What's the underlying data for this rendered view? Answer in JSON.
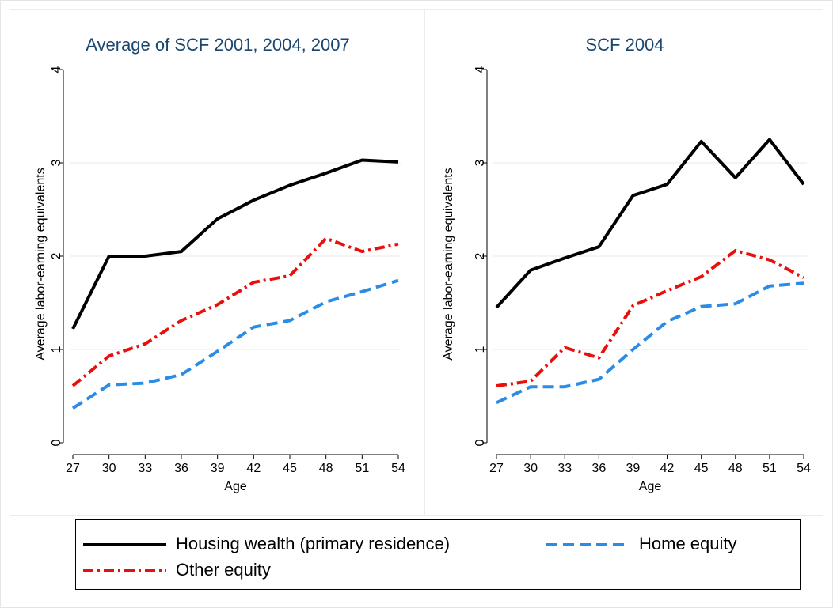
{
  "chart_data": [
    {
      "type": "line",
      "title": "Average of SCF 2001, 2004, 2007",
      "xlabel": "Age",
      "ylabel": "Average labor-earning equivalents",
      "x": [
        27,
        30,
        33,
        36,
        39,
        42,
        45,
        48,
        51,
        54
      ],
      "xlim": [
        27,
        54
      ],
      "xticks": [
        27,
        30,
        33,
        36,
        39,
        42,
        45,
        48,
        51,
        54
      ],
      "ylim": [
        0,
        4
      ],
      "yticks": [
        0,
        1,
        2,
        3,
        4
      ],
      "grid": true,
      "legend": "bottom",
      "series": [
        {
          "name": "Housing wealth (primary residence)",
          "color": "#000000",
          "line_style": "solid",
          "values": [
            1.22,
            2.0,
            2.0,
            2.05,
            2.4,
            2.6,
            2.76,
            2.89,
            3.03,
            3.01
          ]
        },
        {
          "name": "Home equity",
          "color": "#2b8ce8",
          "line_style": "dash",
          "values": [
            0.37,
            0.62,
            0.64,
            0.73,
            0.98,
            1.24,
            1.31,
            1.51,
            1.62,
            1.74
          ]
        },
        {
          "name": "Other equity",
          "color": "#e8100c",
          "line_style": "dashdot",
          "values": [
            0.61,
            0.93,
            1.06,
            1.31,
            1.48,
            1.72,
            1.79,
            2.19,
            2.05,
            2.13
          ]
        }
      ]
    },
    {
      "type": "line",
      "title": "SCF 2004",
      "xlabel": "Age",
      "ylabel": "Average labor-earning equivalents",
      "x": [
        27,
        30,
        33,
        36,
        39,
        42,
        45,
        48,
        51,
        54
      ],
      "xlim": [
        27,
        54
      ],
      "xticks": [
        27,
        30,
        33,
        36,
        39,
        42,
        45,
        48,
        51,
        54
      ],
      "ylim": [
        0,
        4
      ],
      "yticks": [
        0,
        1,
        2,
        3,
        4
      ],
      "grid": true,
      "series": [
        {
          "name": "Housing wealth (primary residence)",
          "color": "#000000",
          "line_style": "solid",
          "values": [
            1.45,
            1.85,
            1.98,
            2.1,
            2.65,
            2.77,
            3.23,
            2.84,
            3.25,
            2.77
          ]
        },
        {
          "name": "Home equity",
          "color": "#2b8ce8",
          "line_style": "dash",
          "values": [
            0.43,
            0.6,
            0.6,
            0.68,
            1.0,
            1.3,
            1.46,
            1.49,
            1.68,
            1.71
          ]
        },
        {
          "name": "Other equity",
          "color": "#e8100c",
          "line_style": "dashdot",
          "values": [
            0.61,
            0.66,
            1.02,
            0.91,
            1.47,
            1.63,
            1.78,
            2.06,
            1.96,
            1.77
          ]
        }
      ]
    }
  ]
}
